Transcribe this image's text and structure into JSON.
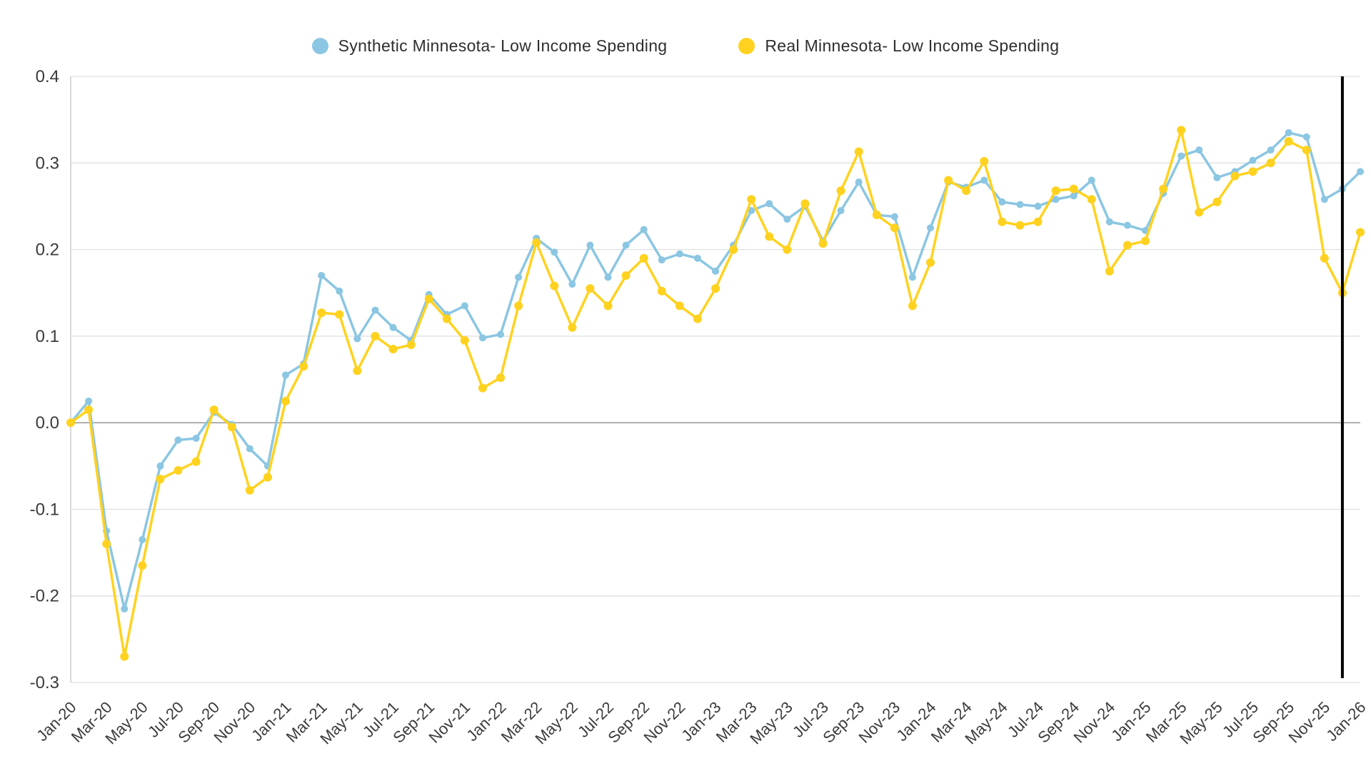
{
  "colors": {
    "background": "#ffffff",
    "grid_line": "#dedede",
    "zero_line": "#9e9e9e",
    "axis_spine": "#c9c9c9",
    "tick_text": "#3b3b3b",
    "legend_text": "#2e2e2e",
    "synthetic_series": "#8bc6e2",
    "real_series": "#ffd21f",
    "marker_line": "#000000"
  },
  "legend": {
    "items": [
      {
        "id": "synthetic",
        "label": "Synthetic Minnesota- Low Income Spending",
        "color": "#8bc6e2"
      },
      {
        "id": "real",
        "label": "Real Minnesota- Low Income Spending",
        "color": "#ffd21f"
      }
    ]
  },
  "chart_data": {
    "type": "line",
    "title": "",
    "xlabel": "",
    "ylabel": "",
    "grid": "horizontal",
    "legend_position": "top-center",
    "ylim": [
      -0.3,
      0.4
    ],
    "yticks": [
      -0.3,
      -0.2,
      -0.1,
      0.0,
      0.1,
      0.2,
      0.3,
      0.4
    ],
    "x_tick_step": 2,
    "x": [
      "Jan-20",
      "Feb-20",
      "Mar-20",
      "Apr-20",
      "May-20",
      "Jun-20",
      "Jul-20",
      "Aug-20",
      "Sep-20",
      "Oct-20",
      "Nov-20",
      "Dec-20",
      "Jan-21",
      "Feb-21",
      "Mar-21",
      "Apr-21",
      "May-21",
      "Jun-21",
      "Jul-21",
      "Aug-21",
      "Sep-21",
      "Oct-21",
      "Nov-21",
      "Dec-21",
      "Jan-22",
      "Feb-22",
      "Mar-22",
      "Apr-22",
      "May-22",
      "Jun-22",
      "Jul-22",
      "Aug-22",
      "Sep-22",
      "Oct-22",
      "Nov-22",
      "Dec-22",
      "Jan-23",
      "Feb-23",
      "Mar-23",
      "Apr-23",
      "May-23",
      "Jun-23",
      "Jul-23",
      "Aug-23",
      "Sep-23",
      "Oct-23",
      "Nov-23",
      "Dec-23",
      "Jan-24",
      "Feb-24",
      "Mar-24",
      "Apr-24",
      "May-24",
      "Jun-24",
      "Jul-24",
      "Aug-24",
      "Sep-24",
      "Oct-24",
      "Nov-24",
      "Dec-24",
      "Jan-25",
      "Feb-25",
      "Mar-25",
      "Apr-25",
      "May-25",
      "Jun-25",
      "Jul-25",
      "Aug-25",
      "Sep-25",
      "Oct-25",
      "Nov-25",
      "Dec-25",
      "Jan-26"
    ],
    "series": [
      {
        "id": "synthetic",
        "name": "Synthetic Minnesota- Low Income Spending",
        "color": "#8bc6e2",
        "dot_radius": 5,
        "values": [
          0.0,
          0.025,
          -0.125,
          -0.215,
          -0.135,
          -0.05,
          -0.02,
          -0.018,
          0.012,
          -0.002,
          -0.03,
          -0.05,
          0.055,
          0.068,
          0.17,
          0.152,
          0.097,
          0.13,
          0.11,
          0.095,
          0.148,
          0.125,
          0.135,
          0.098,
          0.102,
          0.168,
          0.213,
          0.197,
          0.16,
          0.205,
          0.168,
          0.205,
          0.223,
          0.188,
          0.195,
          0.19,
          0.175,
          0.205,
          0.245,
          0.253,
          0.235,
          0.25,
          0.21,
          0.245,
          0.278,
          0.24,
          0.238,
          0.168,
          0.225,
          0.278,
          0.272,
          0.28,
          0.255,
          0.252,
          0.25,
          0.258,
          0.262,
          0.28,
          0.232,
          0.228,
          0.222,
          0.265,
          0.308,
          0.315,
          0.283,
          0.29,
          0.303,
          0.315,
          0.335,
          0.33,
          0.258,
          0.27,
          0.29
        ]
      },
      {
        "id": "real",
        "name": "Real Minnesota- Low Income Spending",
        "color": "#ffd21f",
        "dot_radius": 6,
        "values": [
          0.0,
          0.015,
          -0.14,
          -0.27,
          -0.165,
          -0.065,
          -0.055,
          -0.045,
          0.015,
          -0.005,
          -0.078,
          -0.063,
          0.025,
          0.065,
          0.127,
          0.125,
          0.06,
          0.1,
          0.085,
          0.09,
          0.143,
          0.12,
          0.095,
          0.04,
          0.052,
          0.135,
          0.208,
          0.158,
          0.11,
          0.155,
          0.135,
          0.17,
          0.19,
          0.152,
          0.135,
          0.12,
          0.155,
          0.2,
          0.258,
          0.215,
          0.2,
          0.253,
          0.207,
          0.268,
          0.313,
          0.24,
          0.225,
          0.135,
          0.185,
          0.28,
          0.268,
          0.302,
          0.232,
          0.228,
          0.232,
          0.268,
          0.27,
          0.258,
          0.175,
          0.205,
          0.21,
          0.27,
          0.338,
          0.243,
          0.255,
          0.285,
          0.29,
          0.3,
          0.325,
          0.315,
          0.19,
          0.15,
          0.22
        ]
      }
    ],
    "marker_line": {
      "x_label": "Dec-25",
      "color": "#000000",
      "width": 4
    }
  }
}
